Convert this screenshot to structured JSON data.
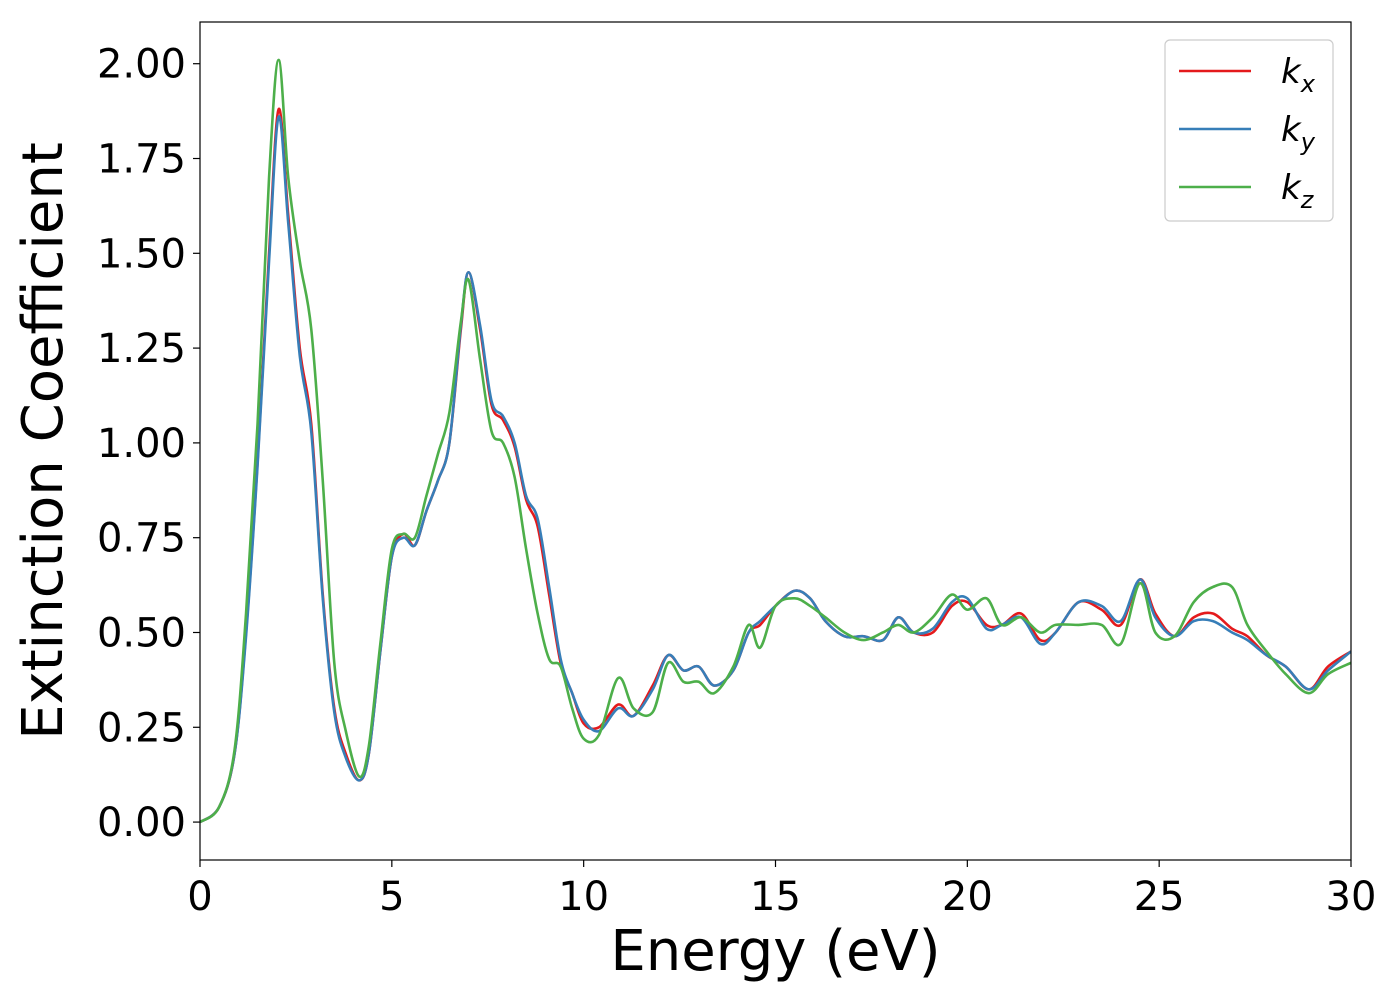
{
  "chart_data": {
    "type": "line",
    "xlabel": "Energy (eV)",
    "ylabel": "Extinction Coefficient",
    "xlim": [
      0,
      30
    ],
    "ylim": [
      -0.1,
      2.11
    ],
    "xticks": [
      0,
      5,
      10,
      15,
      20,
      25,
      30
    ],
    "xtick_labels": [
      "0",
      "5",
      "10",
      "15",
      "20",
      "25",
      "30"
    ],
    "yticks": [
      0,
      0.25,
      0.5,
      0.75,
      1.0,
      1.25,
      1.5,
      1.75,
      2.0
    ],
    "ytick_labels": [
      "0.00",
      "0.25",
      "0.50",
      "0.75",
      "1.00",
      "1.25",
      "1.50",
      "1.75",
      "2.00"
    ],
    "grid": false,
    "legend_position": "top-right",
    "series": [
      {
        "name": "k",
        "subscript": "x",
        "color": "#e41a1c",
        "points": [
          [
            0,
            0.0
          ],
          [
            0.5,
            0.04
          ],
          [
            0.9,
            0.18
          ],
          [
            1.2,
            0.5
          ],
          [
            1.5,
            0.95
          ],
          [
            1.8,
            1.5
          ],
          [
            2.05,
            1.88
          ],
          [
            2.3,
            1.6
          ],
          [
            2.6,
            1.25
          ],
          [
            2.9,
            1.05
          ],
          [
            3.2,
            0.6
          ],
          [
            3.5,
            0.3
          ],
          [
            3.8,
            0.18
          ],
          [
            4.15,
            0.11
          ],
          [
            4.4,
            0.18
          ],
          [
            4.7,
            0.45
          ],
          [
            5.0,
            0.7
          ],
          [
            5.3,
            0.76
          ],
          [
            5.6,
            0.73
          ],
          [
            5.9,
            0.82
          ],
          [
            6.2,
            0.9
          ],
          [
            6.5,
            1.0
          ],
          [
            6.8,
            1.3
          ],
          [
            7.0,
            1.45
          ],
          [
            7.3,
            1.3
          ],
          [
            7.6,
            1.1
          ],
          [
            7.9,
            1.06
          ],
          [
            8.2,
            0.99
          ],
          [
            8.5,
            0.85
          ],
          [
            8.8,
            0.78
          ],
          [
            9.1,
            0.6
          ],
          [
            9.4,
            0.42
          ],
          [
            9.7,
            0.34
          ],
          [
            10.0,
            0.26
          ],
          [
            10.4,
            0.25
          ],
          [
            10.9,
            0.31
          ],
          [
            11.3,
            0.28
          ],
          [
            11.8,
            0.36
          ],
          [
            12.2,
            0.44
          ],
          [
            12.6,
            0.4
          ],
          [
            13.0,
            0.41
          ],
          [
            13.4,
            0.36
          ],
          [
            13.9,
            0.4
          ],
          [
            14.3,
            0.5
          ],
          [
            14.6,
            0.52
          ],
          [
            15.0,
            0.57
          ],
          [
            15.5,
            0.61
          ],
          [
            15.9,
            0.59
          ],
          [
            16.3,
            0.53
          ],
          [
            16.8,
            0.49
          ],
          [
            17.3,
            0.49
          ],
          [
            17.8,
            0.48
          ],
          [
            18.2,
            0.54
          ],
          [
            18.6,
            0.5
          ],
          [
            19.1,
            0.5
          ],
          [
            19.6,
            0.57
          ],
          [
            20.0,
            0.58
          ],
          [
            20.5,
            0.52
          ],
          [
            20.9,
            0.52
          ],
          [
            21.4,
            0.55
          ],
          [
            21.9,
            0.48
          ],
          [
            22.3,
            0.5
          ],
          [
            22.9,
            0.58
          ],
          [
            23.5,
            0.56
          ],
          [
            24.0,
            0.52
          ],
          [
            24.5,
            0.64
          ],
          [
            24.9,
            0.55
          ],
          [
            25.4,
            0.49
          ],
          [
            25.9,
            0.54
          ],
          [
            26.4,
            0.55
          ],
          [
            26.9,
            0.51
          ],
          [
            27.3,
            0.49
          ],
          [
            27.8,
            0.44
          ],
          [
            28.3,
            0.41
          ],
          [
            28.9,
            0.35
          ],
          [
            29.4,
            0.41
          ],
          [
            30.0,
            0.45
          ]
        ]
      },
      {
        "name": "k",
        "subscript": "y",
        "color": "#377eb8",
        "points": [
          [
            0,
            0.0
          ],
          [
            0.5,
            0.04
          ],
          [
            0.9,
            0.18
          ],
          [
            1.2,
            0.49
          ],
          [
            1.5,
            0.94
          ],
          [
            1.8,
            1.48
          ],
          [
            2.05,
            1.86
          ],
          [
            2.3,
            1.58
          ],
          [
            2.6,
            1.23
          ],
          [
            2.9,
            1.03
          ],
          [
            3.2,
            0.59
          ],
          [
            3.5,
            0.29
          ],
          [
            3.8,
            0.17
          ],
          [
            4.15,
            0.11
          ],
          [
            4.4,
            0.18
          ],
          [
            4.7,
            0.45
          ],
          [
            5.0,
            0.7
          ],
          [
            5.3,
            0.75
          ],
          [
            5.6,
            0.73
          ],
          [
            5.9,
            0.82
          ],
          [
            6.2,
            0.9
          ],
          [
            6.5,
            1.0
          ],
          [
            6.8,
            1.31
          ],
          [
            7.0,
            1.45
          ],
          [
            7.3,
            1.31
          ],
          [
            7.6,
            1.11
          ],
          [
            7.9,
            1.07
          ],
          [
            8.2,
            1.0
          ],
          [
            8.5,
            0.86
          ],
          [
            8.8,
            0.8
          ],
          [
            9.1,
            0.62
          ],
          [
            9.4,
            0.43
          ],
          [
            9.7,
            0.34
          ],
          [
            10.0,
            0.27
          ],
          [
            10.4,
            0.24
          ],
          [
            10.9,
            0.3
          ],
          [
            11.3,
            0.28
          ],
          [
            11.8,
            0.35
          ],
          [
            12.2,
            0.44
          ],
          [
            12.6,
            0.4
          ],
          [
            13.0,
            0.41
          ],
          [
            13.4,
            0.36
          ],
          [
            13.9,
            0.4
          ],
          [
            14.3,
            0.5
          ],
          [
            14.6,
            0.53
          ],
          [
            15.0,
            0.57
          ],
          [
            15.5,
            0.61
          ],
          [
            15.9,
            0.59
          ],
          [
            16.3,
            0.53
          ],
          [
            16.8,
            0.49
          ],
          [
            17.3,
            0.49
          ],
          [
            17.8,
            0.48
          ],
          [
            18.2,
            0.54
          ],
          [
            18.6,
            0.5
          ],
          [
            19.1,
            0.51
          ],
          [
            19.6,
            0.58
          ],
          [
            20.0,
            0.59
          ],
          [
            20.5,
            0.51
          ],
          [
            20.9,
            0.52
          ],
          [
            21.4,
            0.54
          ],
          [
            21.9,
            0.47
          ],
          [
            22.3,
            0.5
          ],
          [
            22.9,
            0.58
          ],
          [
            23.5,
            0.57
          ],
          [
            24.0,
            0.53
          ],
          [
            24.5,
            0.64
          ],
          [
            24.9,
            0.54
          ],
          [
            25.4,
            0.49
          ],
          [
            25.9,
            0.53
          ],
          [
            26.4,
            0.53
          ],
          [
            26.9,
            0.5
          ],
          [
            27.3,
            0.48
          ],
          [
            27.8,
            0.44
          ],
          [
            28.3,
            0.41
          ],
          [
            28.9,
            0.35
          ],
          [
            29.4,
            0.4
          ],
          [
            30.0,
            0.45
          ]
        ]
      },
      {
        "name": "k",
        "subscript": "z",
        "color": "#4daf4a",
        "points": [
          [
            0,
            0.0
          ],
          [
            0.5,
            0.04
          ],
          [
            0.9,
            0.19
          ],
          [
            1.2,
            0.55
          ],
          [
            1.5,
            1.05
          ],
          [
            1.8,
            1.7
          ],
          [
            2.05,
            2.01
          ],
          [
            2.3,
            1.7
          ],
          [
            2.6,
            1.48
          ],
          [
            2.9,
            1.3
          ],
          [
            3.2,
            0.9
          ],
          [
            3.5,
            0.42
          ],
          [
            3.8,
            0.24
          ],
          [
            4.15,
            0.12
          ],
          [
            4.4,
            0.2
          ],
          [
            4.7,
            0.47
          ],
          [
            5.0,
            0.72
          ],
          [
            5.3,
            0.76
          ],
          [
            5.6,
            0.75
          ],
          [
            5.9,
            0.86
          ],
          [
            6.2,
            0.97
          ],
          [
            6.5,
            1.08
          ],
          [
            6.8,
            1.32
          ],
          [
            7.0,
            1.43
          ],
          [
            7.3,
            1.22
          ],
          [
            7.6,
            1.03
          ],
          [
            7.9,
            1.0
          ],
          [
            8.2,
            0.91
          ],
          [
            8.5,
            0.72
          ],
          [
            8.8,
            0.55
          ],
          [
            9.1,
            0.43
          ],
          [
            9.4,
            0.41
          ],
          [
            9.7,
            0.3
          ],
          [
            10.0,
            0.22
          ],
          [
            10.4,
            0.23
          ],
          [
            10.9,
            0.38
          ],
          [
            11.3,
            0.3
          ],
          [
            11.8,
            0.29
          ],
          [
            12.2,
            0.42
          ],
          [
            12.6,
            0.37
          ],
          [
            13.0,
            0.37
          ],
          [
            13.4,
            0.34
          ],
          [
            13.9,
            0.41
          ],
          [
            14.3,
            0.52
          ],
          [
            14.6,
            0.46
          ],
          [
            15.0,
            0.57
          ],
          [
            15.5,
            0.59
          ],
          [
            15.9,
            0.57
          ],
          [
            16.3,
            0.54
          ],
          [
            16.8,
            0.5
          ],
          [
            17.3,
            0.48
          ],
          [
            17.8,
            0.5
          ],
          [
            18.2,
            0.52
          ],
          [
            18.6,
            0.5
          ],
          [
            19.1,
            0.54
          ],
          [
            19.6,
            0.6
          ],
          [
            20.0,
            0.56
          ],
          [
            20.5,
            0.59
          ],
          [
            20.9,
            0.52
          ],
          [
            21.4,
            0.54
          ],
          [
            21.9,
            0.5
          ],
          [
            22.3,
            0.52
          ],
          [
            22.9,
            0.52
          ],
          [
            23.5,
            0.52
          ],
          [
            24.0,
            0.47
          ],
          [
            24.5,
            0.63
          ],
          [
            24.9,
            0.5
          ],
          [
            25.4,
            0.49
          ],
          [
            25.9,
            0.58
          ],
          [
            26.4,
            0.62
          ],
          [
            26.9,
            0.62
          ],
          [
            27.3,
            0.52
          ],
          [
            27.8,
            0.45
          ],
          [
            28.3,
            0.39
          ],
          [
            28.9,
            0.34
          ],
          [
            29.4,
            0.39
          ],
          [
            30.0,
            0.42
          ]
        ]
      }
    ]
  }
}
